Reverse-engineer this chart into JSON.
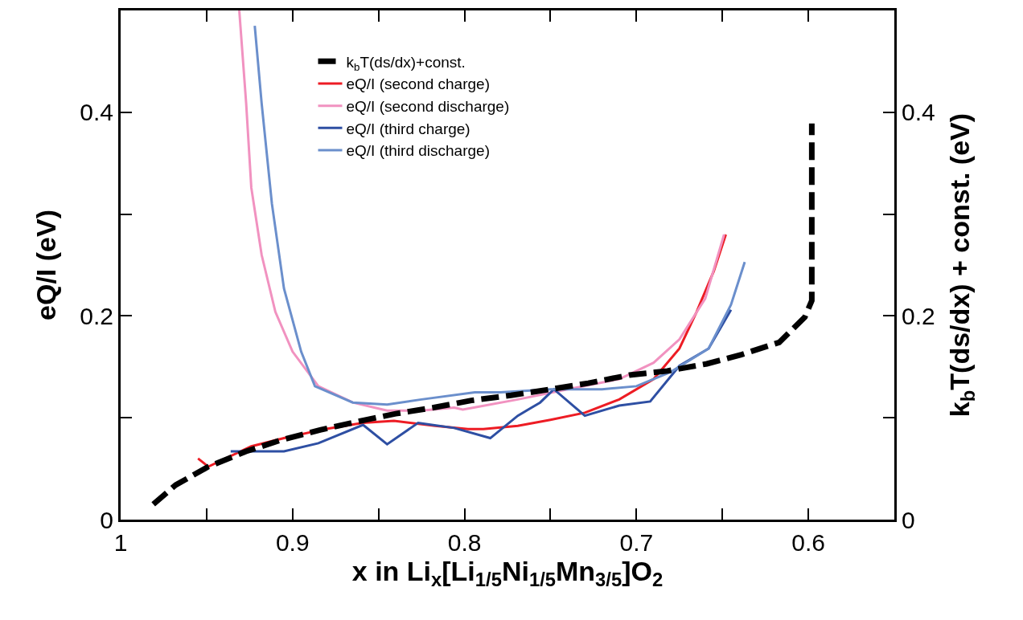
{
  "chart_data": {
    "type": "line",
    "xlabel": "x in Li$_{x}$[Li$_{1/5}$Ni$_{1/5}$Mn$_{3/5}$]O$_{2}$",
    "ylabel": "eQ/I (eV)",
    "y2label": "k$_{b}$T(ds/dx) + const. (eV)",
    "xlim": [
      1,
      0.55
    ],
    "xticks": [
      1,
      {
        "value": 0.95,
        "label": null
      },
      0.9,
      {
        "value": 0.85,
        "label": null
      },
      0.8,
      {
        "value": 0.75,
        "label": null
      },
      0.7,
      {
        "value": 0.65,
        "label": null
      },
      0.6
    ],
    "ylim": [
      0,
      0.5
    ],
    "yticks": [
      0,
      {
        "value": 0.1,
        "label": null
      },
      0.2,
      {
        "value": 0.3,
        "label": null
      },
      0.4
    ],
    "y2lim": [
      0,
      0.5
    ],
    "y2ticks": [
      0,
      {
        "value": 0.1,
        "label": null
      },
      0.2,
      {
        "value": 0.3,
        "label": null
      },
      0.4
    ],
    "legend": "top",
    "marker": "none",
    "series": [
      {
        "name": "k$_{b}$T(ds/dx)+const.",
        "color": "#000000",
        "axis": "y2",
        "line_style": "dashed",
        "x": [
          0.981,
          0.968,
          0.949,
          0.927,
          0.907,
          0.884,
          0.863,
          0.84,
          0.818,
          0.796,
          0.773,
          0.75,
          0.728,
          0.704,
          0.682,
          0.659,
          0.639,
          0.617,
          0.602,
          0.598,
          0.598,
          0.598
        ],
        "values": [
          0.015,
          0.034,
          0.052,
          0.067,
          0.078,
          0.088,
          0.096,
          0.104,
          0.11,
          0.117,
          0.122,
          0.128,
          0.134,
          0.142,
          0.146,
          0.153,
          0.162,
          0.174,
          0.199,
          0.215,
          0.276,
          0.389
        ]
      },
      {
        "name": "eQ/I (second charge)",
        "color": "#ed1c24",
        "x": [
          0.955,
          0.949,
          0.924,
          0.905,
          0.881,
          0.859,
          0.841,
          0.817,
          0.798,
          0.789,
          0.769,
          0.75,
          0.73,
          0.71,
          0.69,
          0.675,
          0.665,
          0.655,
          0.648
        ],
        "values": [
          0.06,
          0.052,
          0.072,
          0.08,
          0.089,
          0.095,
          0.097,
          0.092,
          0.089,
          0.089,
          0.092,
          0.098,
          0.105,
          0.118,
          0.138,
          0.168,
          0.204,
          0.244,
          0.28
        ]
      },
      {
        "name": "eQ/I (second discharge)",
        "color": "#f192c0",
        "x": [
          0.931,
          0.927,
          0.924,
          0.918,
          0.91,
          0.9,
          0.885,
          0.865,
          0.845,
          0.825,
          0.806,
          0.801,
          0.769,
          0.74,
          0.71,
          0.69,
          0.675,
          0.66,
          0.649
        ],
        "values": [
          0.5,
          0.409,
          0.326,
          0.26,
          0.204,
          0.165,
          0.131,
          0.115,
          0.107,
          0.107,
          0.11,
          0.108,
          0.118,
          0.128,
          0.138,
          0.154,
          0.177,
          0.217,
          0.28
        ]
      },
      {
        "name": "eQ/I (third charge)",
        "color": "#2e4fa3",
        "x": [
          0.936,
          0.905,
          0.885,
          0.859,
          0.845,
          0.827,
          0.806,
          0.785,
          0.769,
          0.756,
          0.748,
          0.73,
          0.71,
          0.692,
          0.675,
          0.658,
          0.645
        ],
        "values": [
          0.067,
          0.067,
          0.075,
          0.093,
          0.074,
          0.095,
          0.09,
          0.08,
          0.102,
          0.115,
          0.128,
          0.102,
          0.112,
          0.116,
          0.151,
          0.168,
          0.206
        ]
      },
      {
        "name": "eQ/I (third discharge)",
        "color": "#6b8fcc",
        "x": [
          0.922,
          0.918,
          0.912,
          0.905,
          0.895,
          0.887,
          0.865,
          0.845,
          0.825,
          0.794,
          0.779,
          0.75,
          0.72,
          0.7,
          0.68,
          0.658,
          0.645,
          0.637
        ],
        "values": [
          0.485,
          0.409,
          0.31,
          0.227,
          0.165,
          0.131,
          0.115,
          0.113,
          0.118,
          0.125,
          0.125,
          0.128,
          0.128,
          0.131,
          0.145,
          0.168,
          0.211,
          0.253
        ]
      }
    ]
  }
}
